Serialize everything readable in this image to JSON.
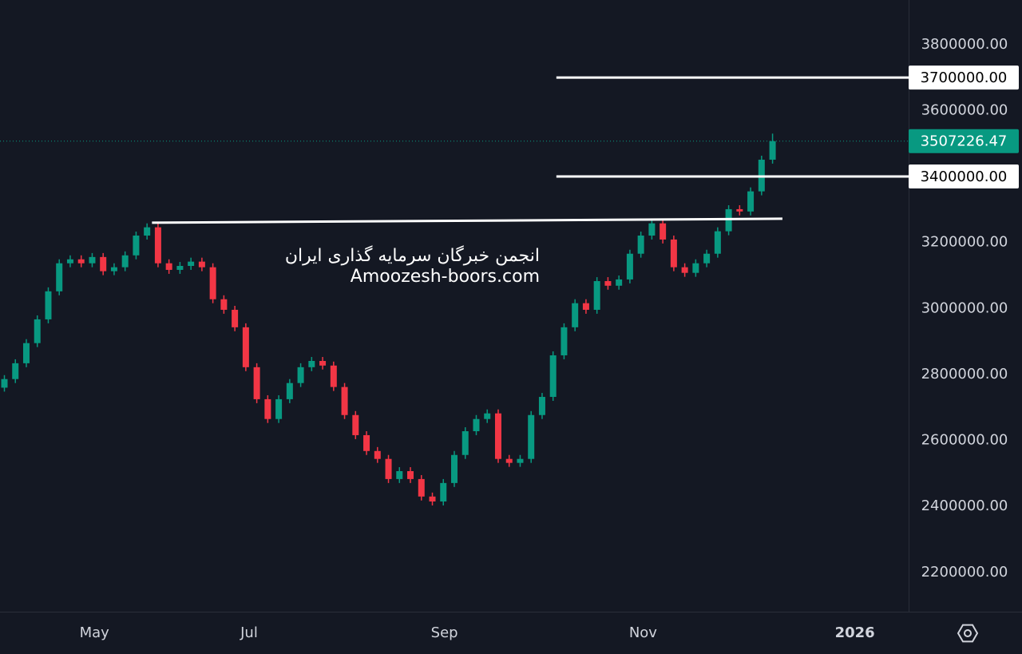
{
  "chart_data": {
    "type": "candlestick",
    "x": [
      0,
      1,
      2,
      3,
      4,
      5,
      6,
      7,
      8,
      9,
      10,
      11,
      12,
      13,
      14,
      15,
      16,
      17,
      18,
      19,
      20,
      21,
      22,
      23,
      24,
      25,
      26,
      27,
      28,
      29,
      30,
      31,
      32,
      33,
      34,
      35,
      36,
      37,
      38,
      39,
      40,
      41,
      42,
      43,
      44,
      45,
      46,
      47,
      48,
      49,
      50,
      51,
      52,
      53,
      54,
      55,
      56,
      57,
      58,
      59,
      60,
      61,
      62,
      63,
      64,
      65,
      66,
      67,
      68,
      69,
      70
    ],
    "open": [
      2760000,
      2786000,
      2834000,
      2895000,
      2967000,
      3052000,
      3137000,
      3149000,
      3137000,
      3156000,
      3113000,
      3125000,
      3161000,
      3221000,
      3246000,
      3137000,
      3117000,
      3129000,
      3142000,
      3125000,
      3028000,
      2996000,
      2943000,
      2822000,
      2725000,
      2665000,
      2725000,
      2774000,
      2822000,
      2841000,
      2827000,
      2762000,
      2677000,
      2616000,
      2568000,
      2544000,
      2483000,
      2507000,
      2483000,
      2430000,
      2415000,
      2471000,
      2556000,
      2628000,
      2665000,
      2682000,
      2544000,
      2532000,
      2544000,
      2677000,
      2732000,
      2858000,
      2943000,
      3016000,
      2996000,
      3083000,
      3069000,
      3088000,
      3166000,
      3221000,
      3258000,
      3209000,
      3125000,
      3108000,
      3137000,
      3166000,
      3234000,
      3301000,
      3294000,
      3355000,
      3451000
    ],
    "high": [
      2798000,
      2846000,
      2907000,
      2979000,
      3064000,
      3149000,
      3161000,
      3161000,
      3168000,
      3168000,
      3137000,
      3173000,
      3233000,
      3258000,
      3258000,
      3149000,
      3141000,
      3154000,
      3154000,
      3137000,
      3040000,
      3008000,
      2955000,
      2834000,
      2737000,
      2737000,
      2786000,
      2834000,
      2853000,
      2853000,
      2839000,
      2774000,
      2689000,
      2628000,
      2580000,
      2556000,
      2519000,
      2519000,
      2495000,
      2442000,
      2483000,
      2568000,
      2640000,
      2677000,
      2694000,
      2694000,
      2556000,
      2556000,
      2689000,
      2744000,
      2870000,
      2955000,
      3028000,
      3028000,
      3095000,
      3095000,
      3100000,
      3178000,
      3233000,
      3270000,
      3270000,
      3221000,
      3137000,
      3149000,
      3178000,
      3246000,
      3313000,
      3313000,
      3367000,
      3463000,
      3530000
    ],
    "low": [
      2748000,
      2774000,
      2822000,
      2883000,
      2955000,
      3040000,
      3125000,
      3125000,
      3125000,
      3101000,
      3101000,
      3113000,
      3149000,
      3209000,
      3125000,
      3105000,
      3105000,
      3117000,
      3113000,
      3016000,
      2984000,
      2931000,
      2810000,
      2713000,
      2653000,
      2653000,
      2713000,
      2762000,
      2810000,
      2815000,
      2750000,
      2665000,
      2604000,
      2556000,
      2532000,
      2471000,
      2471000,
      2471000,
      2418000,
      2403000,
      2403000,
      2459000,
      2544000,
      2616000,
      2653000,
      2532000,
      2520000,
      2520000,
      2532000,
      2665000,
      2720000,
      2846000,
      2931000,
      2984000,
      2984000,
      3057000,
      3057000,
      3076000,
      3154000,
      3209000,
      3197000,
      3113000,
      3096000,
      3096000,
      3125000,
      3154000,
      3222000,
      3282000,
      3282000,
      3343000,
      3439000
    ],
    "close": [
      2786000,
      2834000,
      2895000,
      2967000,
      3052000,
      3137000,
      3149000,
      3137000,
      3156000,
      3113000,
      3125000,
      3161000,
      3221000,
      3246000,
      3137000,
      3117000,
      3129000,
      3142000,
      3125000,
      3028000,
      2996000,
      2943000,
      2822000,
      2725000,
      2665000,
      2725000,
      2774000,
      2822000,
      2841000,
      2827000,
      2762000,
      2677000,
      2616000,
      2568000,
      2544000,
      2483000,
      2507000,
      2483000,
      2430000,
      2415000,
      2471000,
      2556000,
      2628000,
      2665000,
      2682000,
      2544000,
      2532000,
      2544000,
      2677000,
      2732000,
      2858000,
      2943000,
      3016000,
      2996000,
      3083000,
      3069000,
      3088000,
      3166000,
      3221000,
      3258000,
      3209000,
      3125000,
      3108000,
      3137000,
      3166000,
      3234000,
      3301000,
      3294000,
      3355000,
      3451000,
      3507226.47
    ],
    "up_color": "#089981",
    "down_color": "#f23645",
    "xlim": [
      -0.4,
      82.4
    ],
    "xticks": [
      {
        "value": 8.2,
        "label": "May"
      },
      {
        "value": 22.3,
        "label": "Jul"
      },
      {
        "value": 40.1,
        "label": "Sep"
      },
      {
        "value": 58.2,
        "label": "Nov"
      },
      {
        "value": 77.5,
        "label": "2026"
      }
    ],
    "ylim": [
      2081000,
      3935000
    ],
    "yticks": [
      {
        "value": 2200000,
        "label": "2200000.00"
      },
      {
        "value": 2400000,
        "label": "2400000.00"
      },
      {
        "value": 2600000,
        "label": "2600000.00"
      },
      {
        "value": 2800000,
        "label": "2800000.00"
      },
      {
        "value": 3000000,
        "label": "3000000.00"
      },
      {
        "value": 3200000,
        "label": "3200000.00"
      },
      {
        "value": 3600000,
        "label": "3600000.00"
      },
      {
        "value": 3800000,
        "label": "3800000.00"
      }
    ],
    "levels": [
      {
        "value": 3700000,
        "label": "3700000.00",
        "x_start": 50.3
      },
      {
        "value": 3400000,
        "label": "3400000.00",
        "x_start": 50.3
      }
    ],
    "trendline": {
      "x": [
        13.45,
        70.9
      ],
      "y": [
        3260000,
        3272000
      ]
    },
    "last_price": {
      "value": 3507226.47,
      "label": "3507226.47"
    },
    "watermark": [
      "انجمن خبرگان سرمایه گذاری ایران",
      "Amoozesh-boors.com"
    ]
  }
}
